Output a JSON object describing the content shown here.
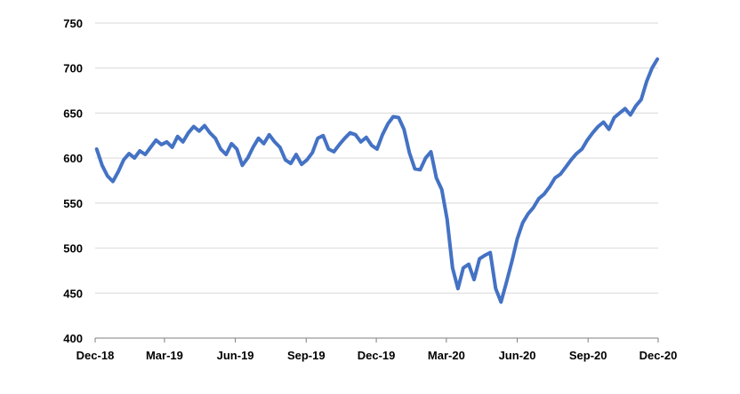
{
  "chart_data": {
    "type": "line",
    "title": "",
    "xlabel": "",
    "ylabel": "",
    "ylim": [
      400,
      750
    ],
    "y_ticks": [
      400,
      450,
      500,
      550,
      600,
      650,
      700,
      750
    ],
    "x_ticks": [
      "Dec-18",
      "Mar-19",
      "Jun-19",
      "Sep-19",
      "Dec-19",
      "Mar-20",
      "Jun-20",
      "Sep-20",
      "Dec-20"
    ],
    "grid": "horizontal",
    "legend": "none",
    "line_color": "#4472C4",
    "series": [
      {
        "x": [
          "2018-12-03",
          "2018-12-10",
          "2018-12-17",
          "2018-12-24",
          "2018-12-31",
          "2019-01-07",
          "2019-01-14",
          "2019-01-21",
          "2019-01-28",
          "2019-02-04",
          "2019-02-11",
          "2019-02-18",
          "2019-02-25",
          "2019-03-04",
          "2019-03-11",
          "2019-03-18",
          "2019-03-25",
          "2019-04-01",
          "2019-04-08",
          "2019-04-15",
          "2019-04-22",
          "2019-04-29",
          "2019-05-06",
          "2019-05-13",
          "2019-05-20",
          "2019-05-27",
          "2019-06-03",
          "2019-06-10",
          "2019-06-17",
          "2019-06-24",
          "2019-07-01",
          "2019-07-08",
          "2019-07-15",
          "2019-07-22",
          "2019-07-29",
          "2019-08-05",
          "2019-08-12",
          "2019-08-19",
          "2019-08-26",
          "2019-09-02",
          "2019-09-09",
          "2019-09-16",
          "2019-09-23",
          "2019-09-30",
          "2019-10-07",
          "2019-10-14",
          "2019-10-21",
          "2019-10-28",
          "2019-11-04",
          "2019-11-11",
          "2019-11-18",
          "2019-11-25",
          "2019-12-02",
          "2019-12-09",
          "2019-12-16",
          "2019-12-23",
          "2019-12-30",
          "2020-01-06",
          "2020-01-13",
          "2020-01-20",
          "2020-01-27",
          "2020-02-03",
          "2020-02-10",
          "2020-02-17",
          "2020-02-24",
          "2020-03-02",
          "2020-03-09",
          "2020-03-16",
          "2020-03-23",
          "2020-03-30",
          "2020-04-06",
          "2020-04-13",
          "2020-04-20",
          "2020-04-27",
          "2020-05-04",
          "2020-05-11",
          "2020-05-18",
          "2020-05-25",
          "2020-06-01",
          "2020-06-08",
          "2020-06-15",
          "2020-06-22",
          "2020-06-29",
          "2020-07-06",
          "2020-07-13",
          "2020-07-20",
          "2020-07-27",
          "2020-08-03",
          "2020-08-10",
          "2020-08-17",
          "2020-08-24",
          "2020-08-31",
          "2020-09-07",
          "2020-09-14",
          "2020-09-21",
          "2020-09-28",
          "2020-10-05",
          "2020-10-12",
          "2020-10-19",
          "2020-10-26",
          "2020-11-02",
          "2020-11-09",
          "2020-11-16",
          "2020-11-23",
          "2020-11-30"
        ],
        "values": [
          610,
          592,
          580,
          574,
          585,
          598,
          605,
          600,
          608,
          604,
          612,
          620,
          615,
          618,
          612,
          624,
          618,
          628,
          635,
          630,
          636,
          628,
          622,
          610,
          604,
          616,
          610,
          592,
          600,
          612,
          622,
          616,
          626,
          618,
          612,
          598,
          594,
          604,
          593,
          598,
          606,
          622,
          625,
          610,
          607,
          615,
          622,
          628,
          626,
          618,
          623,
          614,
          610,
          626,
          638,
          646,
          645,
          632,
          606,
          588,
          587,
          600,
          607,
          578,
          565,
          532,
          478,
          455,
          478,
          482,
          465,
          488,
          492,
          495,
          455,
          440,
          462,
          485,
          510,
          528,
          538,
          545,
          555,
          560,
          568,
          578,
          582,
          590,
          598,
          605,
          610,
          620,
          628,
          635,
          640,
          632,
          645,
          650,
          655,
          648,
          658,
          665,
          685,
          700,
          710
        ]
      }
    ]
  }
}
